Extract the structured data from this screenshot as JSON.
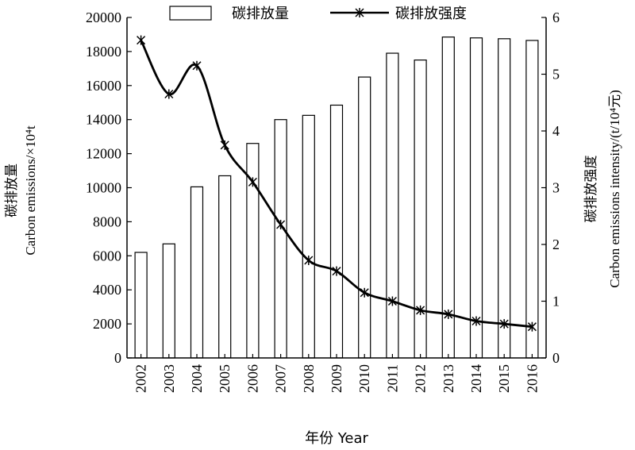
{
  "chart_data": {
    "type": "bar+line",
    "categories": [
      "2002",
      "2003",
      "2004",
      "2005",
      "2006",
      "2007",
      "2008",
      "2009",
      "2010",
      "2011",
      "2012",
      "2013",
      "2014",
      "2015",
      "2016"
    ],
    "series": [
      {
        "name": "碳排放量",
        "type": "bar",
        "axis": "left",
        "values": [
          6200,
          6700,
          10050,
          10700,
          12600,
          14000,
          14250,
          14850,
          16500,
          17900,
          17500,
          18850,
          18800,
          18750,
          18650
        ]
      },
      {
        "name": "碳排放强度",
        "type": "line",
        "axis": "right",
        "values": [
          5.6,
          4.65,
          5.15,
          3.75,
          3.1,
          2.35,
          1.72,
          1.53,
          1.15,
          1.0,
          0.84,
          0.77,
          0.65,
          0.6,
          0.55
        ]
      }
    ],
    "y_left": {
      "label_line1": "碳排放量",
      "label_line2": "Carbon emissions/×10⁴t",
      "range": [
        0,
        20000
      ],
      "ticks": [
        "0",
        "2000",
        "4000",
        "6000",
        "8000",
        "10000",
        "12000",
        "14000",
        "16000",
        "18000",
        "20000"
      ]
    },
    "y_right": {
      "label_line1": "碳排放强度",
      "label_line2": "Carbon emissions intensity/(t/10⁴元)",
      "range": [
        0,
        6
      ],
      "ticks": [
        "0",
        "1",
        "2",
        "3",
        "4",
        "5",
        "6"
      ]
    },
    "xlabel": "年份 Year",
    "legend_position": "top",
    "grid": false
  }
}
